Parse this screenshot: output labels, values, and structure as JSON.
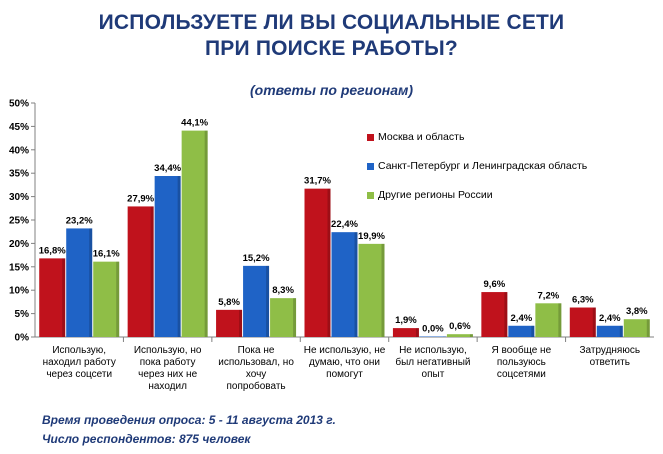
{
  "chart_data": {
    "type": "bar",
    "title": "ИСПОЛЬЗУЕТЕ ЛИ ВЫ СОЦИАЛЬНЫЕ СЕТИ ПРИ ПОИСКЕ РАБОТЫ?",
    "title_lines": [
      "ИСПОЛЬЗУЕТЕ ЛИ ВЫ СОЦИАЛЬНЫЕ СЕТИ",
      "ПРИ ПОИСКЕ РАБОТЫ?"
    ],
    "subtitle": "(ответы по регионам)",
    "xlabel": "",
    "ylabel": "",
    "ylim": [
      0,
      50
    ],
    "yticks": [
      "0%",
      "5%",
      "10%",
      "15%",
      "20%",
      "25%",
      "30%",
      "35%",
      "40%",
      "45%",
      "50%"
    ],
    "grid": false,
    "legend_position": "right",
    "categories": [
      [
        "Использую,",
        "находил работу",
        "через соцсети"
      ],
      [
        "Использую, но",
        "пока работу",
        "через них не",
        "находил"
      ],
      [
        "Пока не",
        "использовал, но",
        "хочу",
        "попробовать"
      ],
      [
        "Не использую, не",
        "думаю, что они",
        "помогут"
      ],
      [
        "Не использую,",
        "был негативный",
        "опыт"
      ],
      [
        "Я вообще не",
        "пользуюсь",
        "соцсетями"
      ],
      [
        "Затрудняюсь",
        "ответить"
      ]
    ],
    "series": [
      {
        "name": "Москва  и область",
        "color": "#c0121c",
        "values": [
          16.8,
          27.9,
          5.8,
          31.7,
          1.9,
          9.6,
          6.3
        ],
        "labels": [
          "16,8%",
          "27,9%",
          "5,8%",
          "31,7%",
          "1,9%",
          "9,6%",
          "6,3%"
        ]
      },
      {
        "name": "Санкт-Петербург и Ленинградская область",
        "color": "#1f63c6",
        "values": [
          23.2,
          34.4,
          15.2,
          22.4,
          0.0,
          2.4,
          2.4
        ],
        "labels": [
          "23,2%",
          "34,4%",
          "15,2%",
          "22,4%",
          "0,0%",
          "2,4%",
          "2,4%"
        ]
      },
      {
        "name": "Другие регионы России",
        "color": "#8fbe47",
        "values": [
          16.1,
          44.1,
          8.3,
          19.9,
          0.6,
          7.2,
          3.8
        ],
        "labels": [
          "16,1%",
          "44,1%",
          "8,3%",
          "19,9%",
          "0,6%",
          "7,2%",
          "3,8%"
        ]
      }
    ]
  },
  "footer": {
    "line1": "Время проведения опроса:  5 - 11 августа 2013 г.",
    "line2": "Число респондентов:  875 человек"
  }
}
